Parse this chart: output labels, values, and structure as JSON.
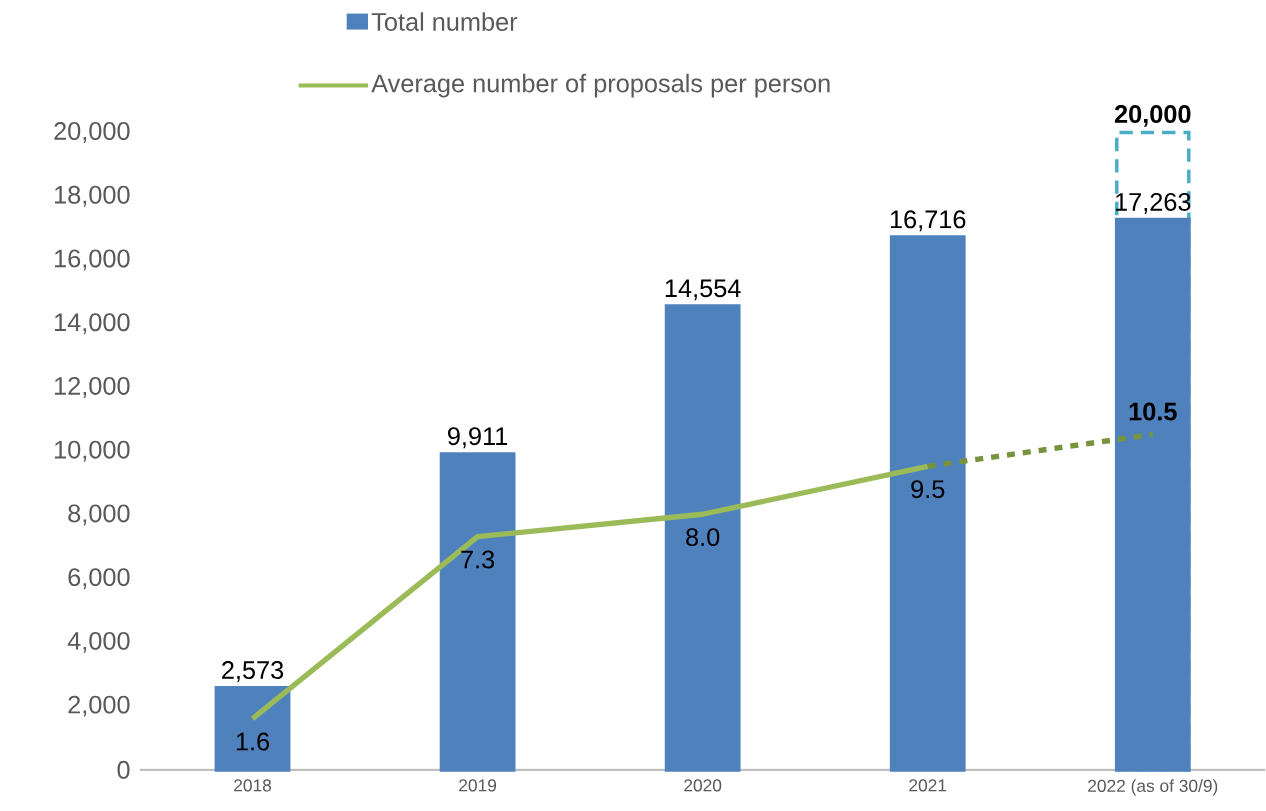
{
  "chart_data": {
    "type": "bar",
    "categories": [
      "2018",
      "2019",
      "2020",
      "2021",
      "2022 (as of 30/9)"
    ],
    "series": [
      {
        "name": "Total number",
        "color": "#4f81bd",
        "values": [
          2573,
          9911,
          14554,
          16716,
          17263
        ],
        "value_labels": [
          "2,573",
          "9,911",
          "14,554",
          "16,716",
          "17,263"
        ]
      },
      {
        "color": "#4bacc6",
        "line_style": "dashed",
        "values": [
          null,
          null,
          null,
          null,
          20000
        ],
        "value_labels": [
          null,
          null,
          null,
          null,
          "20,000"
        ]
      },
      {
        "name": "Average number of proposals per person",
        "type": "line",
        "axis": "y2",
        "color": "#9bbb59",
        "line_style": "solid",
        "values": [
          1.6,
          7.3,
          8.0,
          9.5,
          null
        ],
        "value_labels": [
          "1.6",
          "7.3",
          "8.0",
          "9.5",
          null
        ]
      },
      {
        "type": "line",
        "axis": "y2",
        "color": "#77933c",
        "line_style": "dashed",
        "values": [
          null,
          null,
          null,
          9.5,
          10.5
        ],
        "value_labels": [
          null,
          null,
          null,
          null,
          "10.5"
        ]
      }
    ],
    "ylim": [
      0,
      20000
    ],
    "yticks": [
      {
        "value": 0,
        "label": "0"
      },
      {
        "value": 2000,
        "label": "2,000"
      },
      {
        "value": 4000,
        "label": "4,000"
      },
      {
        "value": 6000,
        "label": "6,000"
      },
      {
        "value": 8000,
        "label": "8,000"
      },
      {
        "value": 10000,
        "label": "10,000"
      },
      {
        "value": 12000,
        "label": "12,000"
      },
      {
        "value": 14000,
        "label": "14,000"
      },
      {
        "value": 16000,
        "label": "16,000"
      },
      {
        "value": 18000,
        "label": "18,000"
      },
      {
        "value": 20000,
        "label": "20,000"
      }
    ],
    "legend": "top",
    "grid": false
  }
}
